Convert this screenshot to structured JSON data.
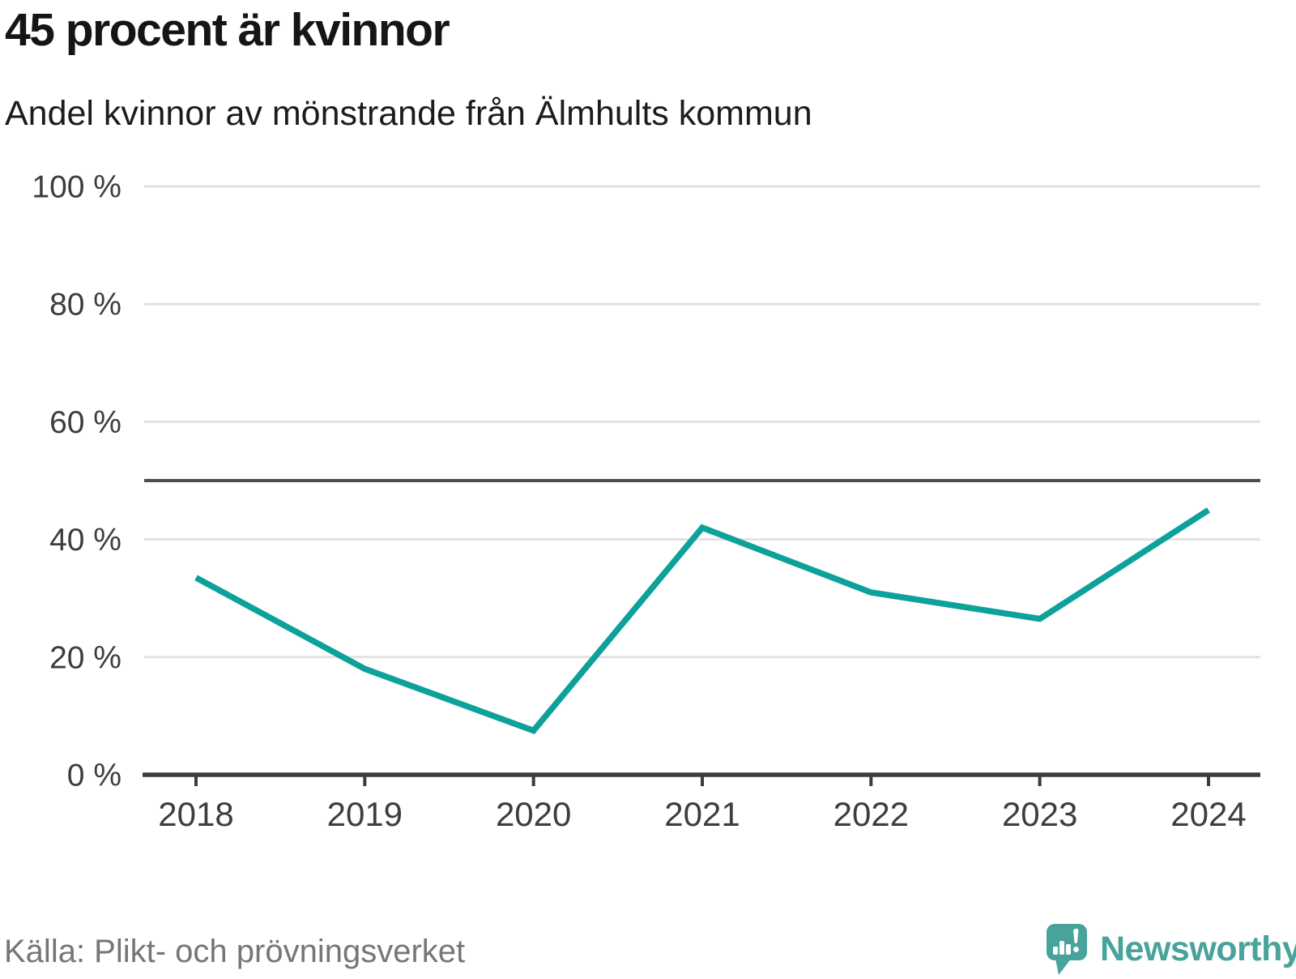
{
  "header": {
    "title": "45 procent är kvinnor",
    "subtitle": "Andel kvinnor av mönstrande från Älmhults kommun"
  },
  "footer": {
    "source": "Källa: Plikt- och prövningsverket",
    "logo_text": "Newsworthy"
  },
  "colors": {
    "line": "#0ca19a",
    "grid": "#e2e2e2",
    "reference": "#4e4e4e",
    "axis": "#3c3c3c",
    "tick_label": "#3d3d3d",
    "title": "#151515",
    "source": "#767676",
    "logo": "#47a39c"
  },
  "chart_data": {
    "type": "line",
    "title": "45 procent är kvinnor",
    "subtitle": "Andel kvinnor av mönstrande från Älmhults kommun",
    "x": [
      2018,
      2019,
      2020,
      2021,
      2022,
      2023,
      2024
    ],
    "xtick_labels": [
      "2018",
      "2019",
      "2020",
      "2021",
      "2022",
      "2023",
      "2024"
    ],
    "series": [
      {
        "name": "Andel kvinnor",
        "values": [
          33.5,
          18,
          7.5,
          42,
          31,
          26.5,
          45
        ]
      }
    ],
    "ylim": [
      0,
      100
    ],
    "yticks": [
      {
        "value": 0,
        "label": "0 %"
      },
      {
        "value": 20,
        "label": "20 %"
      },
      {
        "value": 40,
        "label": "40 %"
      },
      {
        "value": 60,
        "label": "60 %"
      },
      {
        "value": 80,
        "label": "80 %"
      },
      {
        "value": 100,
        "label": "100 %"
      }
    ],
    "reference_line": {
      "value": 50
    },
    "grid": "horizontal",
    "legend": "none"
  }
}
